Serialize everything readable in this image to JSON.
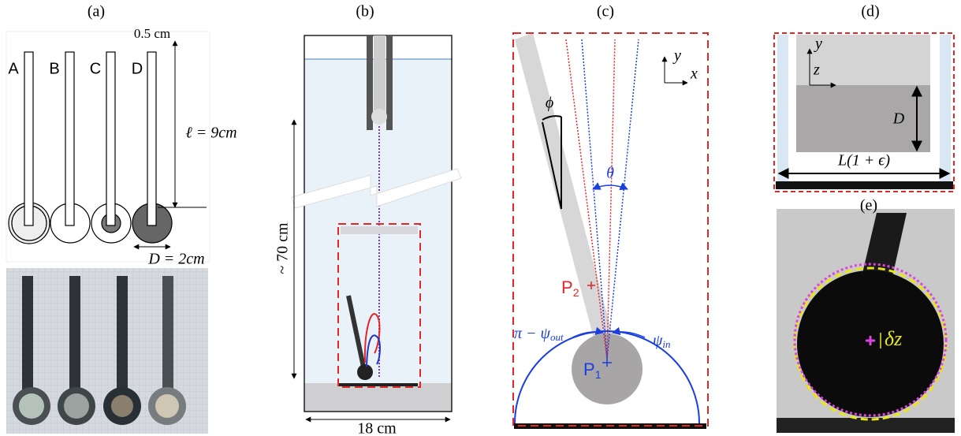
{
  "panels": {
    "a": {
      "label": "(a)",
      "rods": [
        "A",
        "B",
        "C",
        "D"
      ],
      "width": "0.5 cm",
      "length": "ℓ = 9cm",
      "diameter": "D = 2cm"
    },
    "b": {
      "label": "(b)",
      "height": "~ 70 cm",
      "width": "18 cm"
    },
    "c": {
      "label": "(c)",
      "axis_y": "y",
      "axis_x": "x",
      "tilt": "ϕ",
      "spread": "θ",
      "point_2": {
        "main": "P",
        "sub": "2"
      },
      "point_1": {
        "main": "P",
        "sub": "1"
      },
      "angle_out": {
        "main": "π − ψ",
        "sub": "out"
      },
      "angle_in": {
        "main": "ψ",
        "sub": "in"
      }
    },
    "d": {
      "label": "(d)",
      "axis_y": "y",
      "axis_z": "z",
      "depth": "D",
      "length": "L(1 + ϵ)"
    },
    "e": {
      "label": "(e)",
      "shift": "δz"
    }
  }
}
